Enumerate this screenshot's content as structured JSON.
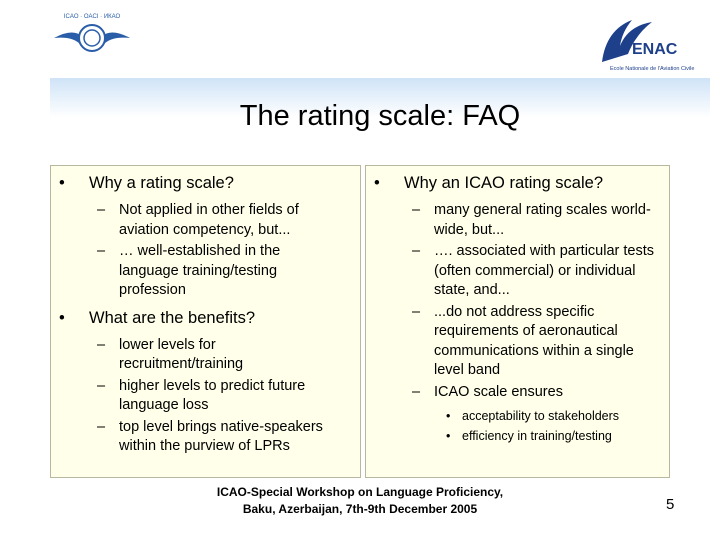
{
  "header": {
    "title": "The rating scale: FAQ"
  },
  "logos": {
    "left": {
      "text": "ICAO · OACI · ИКАО"
    },
    "right": {
      "name": "ENAC",
      "subtitle": "Ecole Nationale de l'Aviation Civile"
    }
  },
  "columns": [
    {
      "items": [
        {
          "text": "Why a rating scale?",
          "subitems": [
            {
              "text": "Not applied in other fields of aviation competency, but..."
            },
            {
              "text": "… well-established in the language training/testing profession"
            }
          ]
        },
        {
          "text": "What are the benefits?",
          "subitems": [
            {
              "text": "lower levels for recruitment/training"
            },
            {
              "text": "higher levels to predict future language loss"
            },
            {
              "text": "top level brings native-speakers within the purview of LPRs"
            }
          ]
        }
      ]
    },
    {
      "items": [
        {
          "text": "Why an ICAO rating scale?",
          "subitems": [
            {
              "text": "many general rating scales world-wide, but..."
            },
            {
              "text": "…. associated with particular tests (often commercial) or individual state, and..."
            },
            {
              "text": "...do not address specific requirements of aeronautical communications within a single level band"
            },
            {
              "text": "ICAO scale ensures",
              "subitems": [
                {
                  "text": "acceptability to stakeholders"
                },
                {
                  "text": "efficiency in training/testing"
                }
              ]
            }
          ]
        }
      ]
    }
  ],
  "footer": {
    "lines": [
      "ICAO-Special Workshop on Language Proficiency,",
      "Baku, Azerbaijan, 7th-9th December 2005"
    ],
    "page_number": "5"
  }
}
